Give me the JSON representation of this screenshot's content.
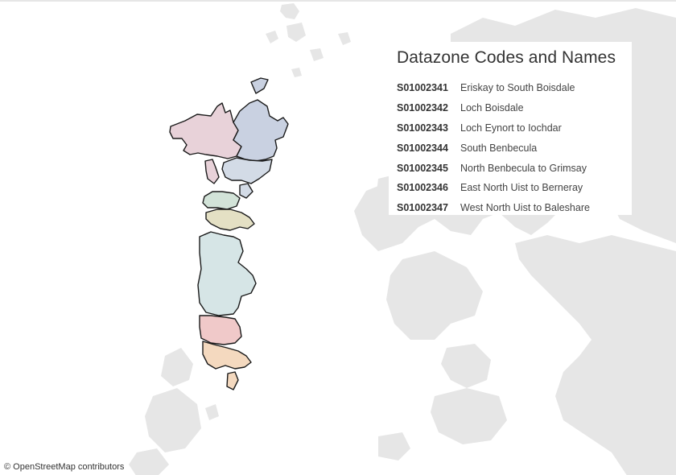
{
  "legend": {
    "title": "Datazone Codes and Names",
    "rows": [
      {
        "code": "S01002341",
        "name": "Eriskay to South Boisdale"
      },
      {
        "code": "S01002342",
        "name": "Loch Boisdale"
      },
      {
        "code": "S01002343",
        "name": "Loch Eynort to Iochdar"
      },
      {
        "code": "S01002344",
        "name": "South Benbecula"
      },
      {
        "code": "S01002345",
        "name": "North Benbecula to Grimsay"
      },
      {
        "code": "S01002346",
        "name": "East North Uist to Berneray"
      },
      {
        "code": "S01002347",
        "name": "West North Uist to Baleshare"
      }
    ]
  },
  "attribution": "© OpenStreetMap contributors",
  "colors": {
    "land": "#e6e6e6",
    "outline": "#1a1a1a",
    "zone_west_north_uist": "#e8d2d9",
    "zone_east_north_uist": "#c9d1e1",
    "zone_north_benbecula": "#d3dbe6",
    "zone_south_benbecula": "#d2e3d8",
    "zone_loch_eynort": "#e4e0c4",
    "zone_loch_eynort_main": "#d6e5e6",
    "zone_loch_boisdale": "#f0c9c9",
    "zone_eriskay": "#f4d9bf"
  }
}
